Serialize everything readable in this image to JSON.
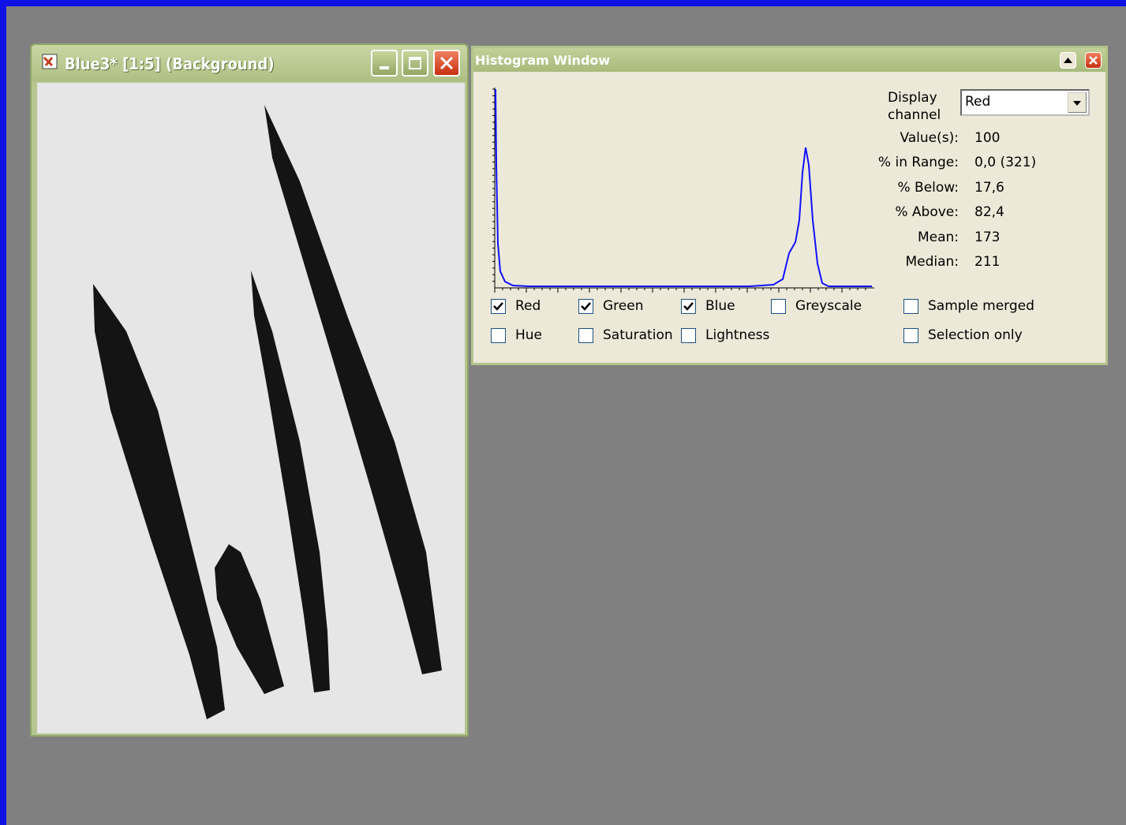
{
  "image_window": {
    "title": "Blue3* [1:5] (Background)"
  },
  "histogram_window": {
    "title": "Histogram Window",
    "display_channel": {
      "label": "Display channel",
      "value": "Red"
    },
    "stats": [
      {
        "label": "Value(s):",
        "value": "100"
      },
      {
        "label": "% in Range:",
        "value": "0,0 (321)"
      },
      {
        "label": "% Below:",
        "value": "17,6"
      },
      {
        "label": "% Above:",
        "value": "82,4"
      },
      {
        "label": "Mean:",
        "value": "173"
      },
      {
        "label": "Median:",
        "value": "211"
      }
    ],
    "checkboxes": [
      {
        "label": "Red",
        "checked": true
      },
      {
        "label": "Green",
        "checked": true
      },
      {
        "label": "Blue",
        "checked": true
      },
      {
        "label": "Greyscale",
        "checked": false
      },
      {
        "label": "Sample merged",
        "checked": false
      },
      {
        "label": "Hue",
        "checked": false
      },
      {
        "label": "Saturation",
        "checked": false
      },
      {
        "label": "Lightness",
        "checked": false
      },
      {
        "label": "Selection only",
        "checked": false
      }
    ]
  }
}
